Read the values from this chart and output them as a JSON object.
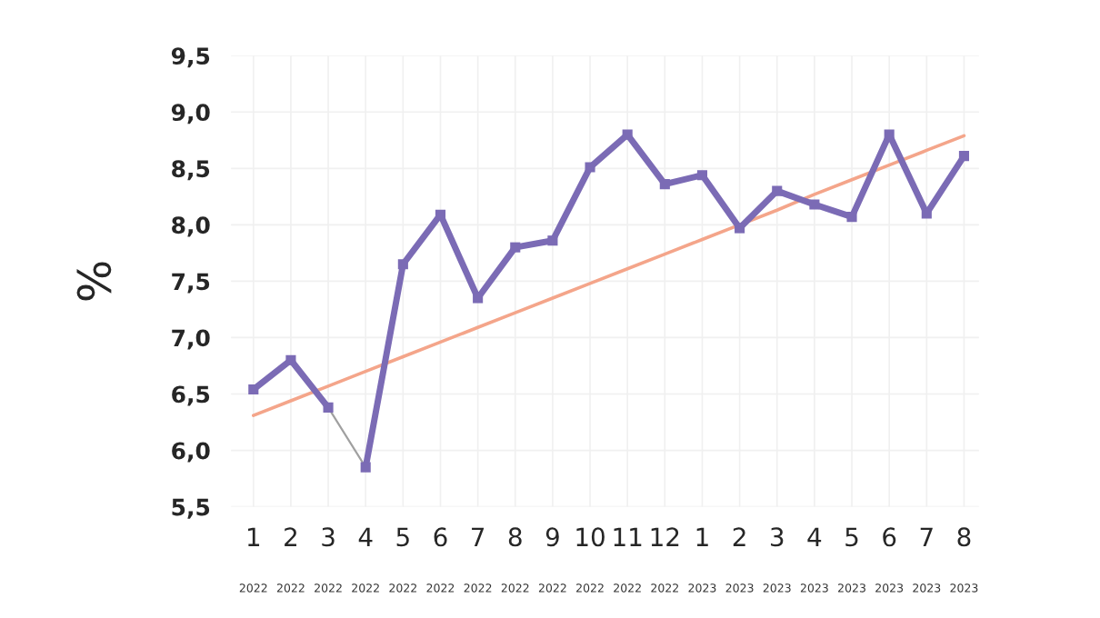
{
  "chart_data": {
    "type": "line",
    "ylabel": "%",
    "categories": [
      "1\n2022",
      "2\n2022",
      "3\n2022",
      "4\n2022",
      "5\n2022",
      "6\n2022",
      "7\n2022",
      "8\n2022",
      "9\n2022",
      "10\n2022",
      "11\n2022",
      "12\n2022",
      "1\n2023",
      "2\n2023",
      "3\n2023",
      "4\n2023",
      "5\n2023",
      "6\n2023",
      "7\n2023",
      "8\n2023"
    ],
    "series": [
      {
        "color": "#7b6bb5",
        "marker": "square",
        "values": [
          6.54,
          6.8,
          6.38,
          null,
          null,
          null,
          null,
          null,
          null,
          null,
          null,
          null,
          null,
          null,
          null,
          null,
          null,
          null,
          null,
          null
        ]
      },
      {
        "color": "#a0a0a0",
        "marker": "none",
        "values": [
          null,
          null,
          6.38,
          5.85,
          null,
          null,
          null,
          null,
          null,
          null,
          null,
          null,
          null,
          null,
          null,
          null,
          null,
          null,
          null,
          null
        ]
      },
      {
        "color": "#7b6bb5",
        "marker": "square",
        "values": [
          null,
          null,
          null,
          5.85,
          7.65,
          8.09,
          7.35,
          7.8,
          7.86,
          8.51,
          8.8,
          8.36,
          8.44,
          7.97,
          8.3,
          8.18,
          8.07,
          8.8,
          8.1,
          8.61
        ]
      },
      {
        "color": "#f4a58a",
        "marker": "none",
        "values": [
          6.31,
          6.44,
          6.57,
          6.7,
          6.83,
          6.96,
          7.09,
          7.22,
          7.35,
          7.48,
          7.61,
          7.74,
          7.87,
          8.0,
          8.13,
          8.27,
          8.4,
          8.53,
          8.66,
          8.79
        ]
      }
    ],
    "ylim": [
      5.5,
      9.5
    ],
    "yticks": [
      {
        "value": 5.5,
        "label": "5,5"
      },
      {
        "value": 6.0,
        "label": "6,0"
      },
      {
        "value": 6.5,
        "label": "6,5"
      },
      {
        "value": 7.0,
        "label": "7,0"
      },
      {
        "value": 7.5,
        "label": "7,5"
      },
      {
        "value": 8.0,
        "label": "8,0"
      },
      {
        "value": 8.5,
        "label": "8,5"
      },
      {
        "value": 9.0,
        "label": "9,0"
      },
      {
        "value": 9.5,
        "label": "9,5"
      }
    ],
    "grid": true,
    "legend": false
  }
}
